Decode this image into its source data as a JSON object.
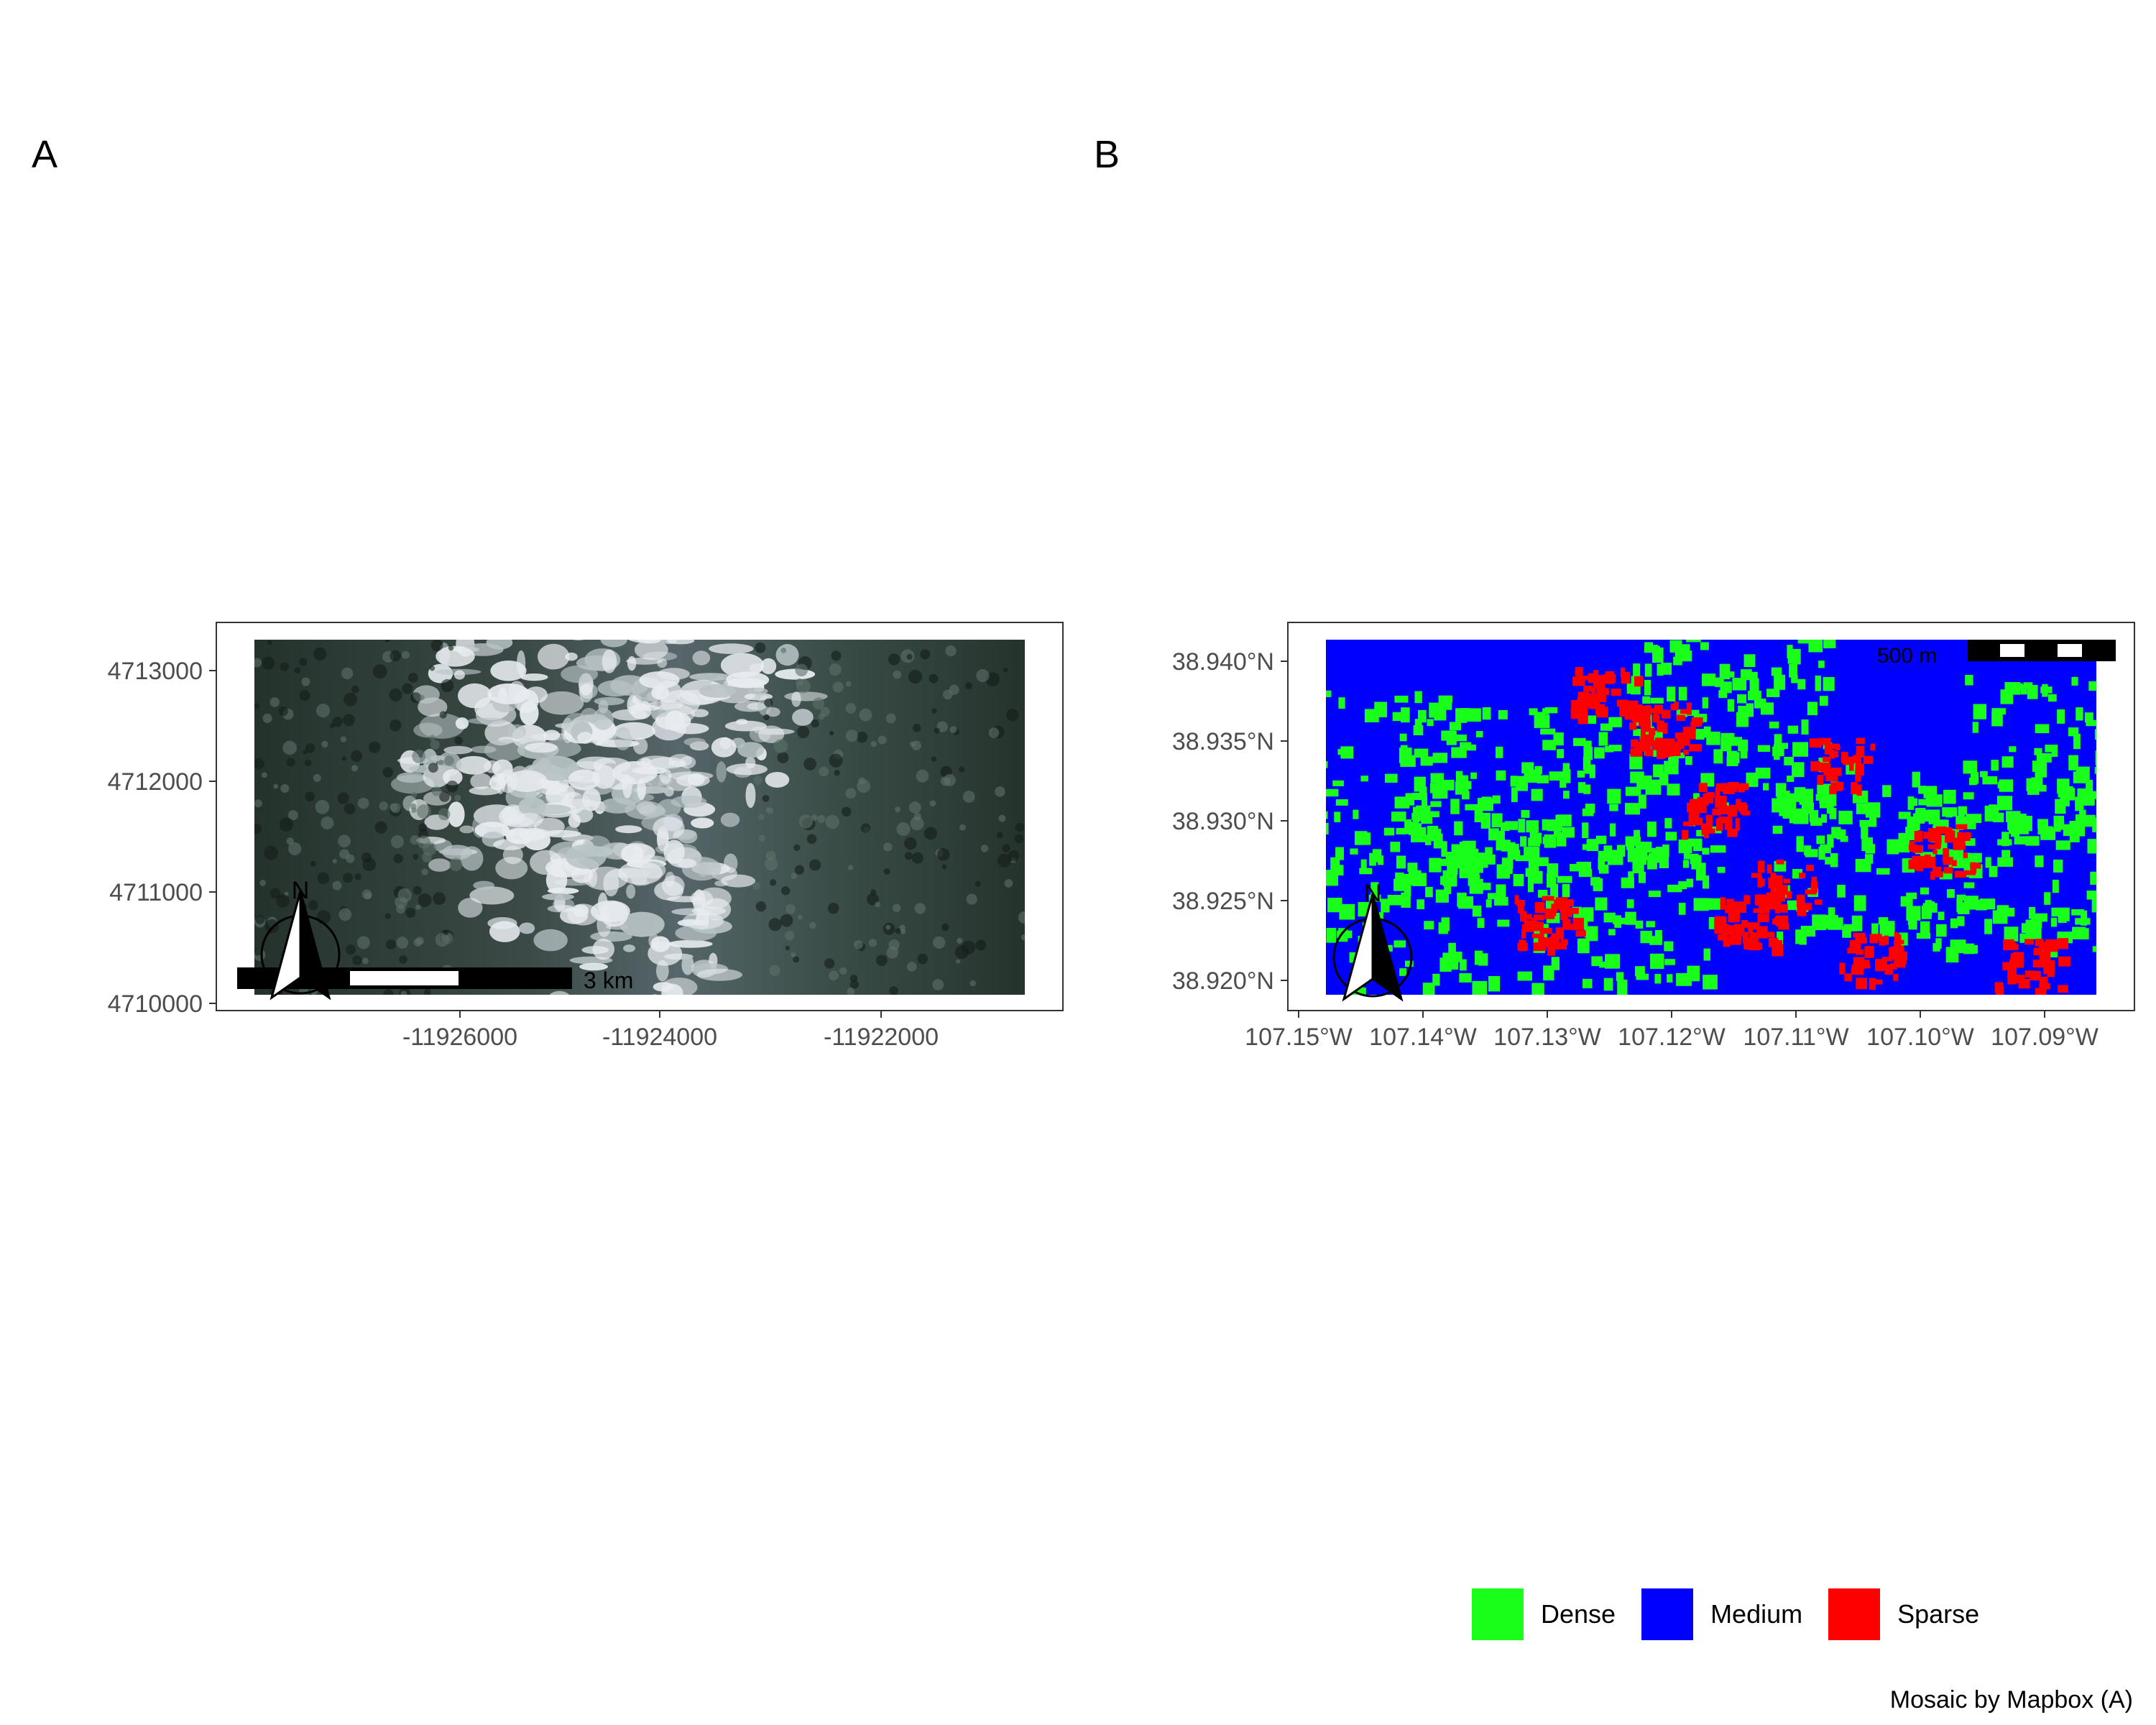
{
  "panels": {
    "a": {
      "label": "A",
      "y_ticks": [
        "4710000",
        "4711000",
        "4712000",
        "4713000"
      ],
      "x_ticks": [
        "-11926000",
        "-11924000",
        "-11922000"
      ],
      "north_arrow": "N",
      "scalebar": "3 km"
    },
    "b": {
      "label": "B",
      "y_ticks": [
        "38.920°N",
        "38.925°N",
        "38.930°N",
        "38.935°N",
        "38.940°N"
      ],
      "x_ticks": [
        "107.15°W",
        "107.14°W",
        "107.13°W",
        "107.12°W",
        "107.11°W",
        "107.10°W",
        "107.09°W"
      ],
      "north_arrow": "N",
      "scalebar": "500 m"
    }
  },
  "legend": [
    {
      "label": "Dense",
      "color": "#19ff19"
    },
    {
      "label": "Medium",
      "color": "#0000ff"
    },
    {
      "label": "Sparse",
      "color": "#ff0000"
    }
  ],
  "caption": "Mosaic by Mapbox (A)",
  "colors": {
    "satellite_forest": "#1e2a26",
    "satellite_snow": "#e6eaee",
    "satellite_meadow": "#49605a"
  }
}
